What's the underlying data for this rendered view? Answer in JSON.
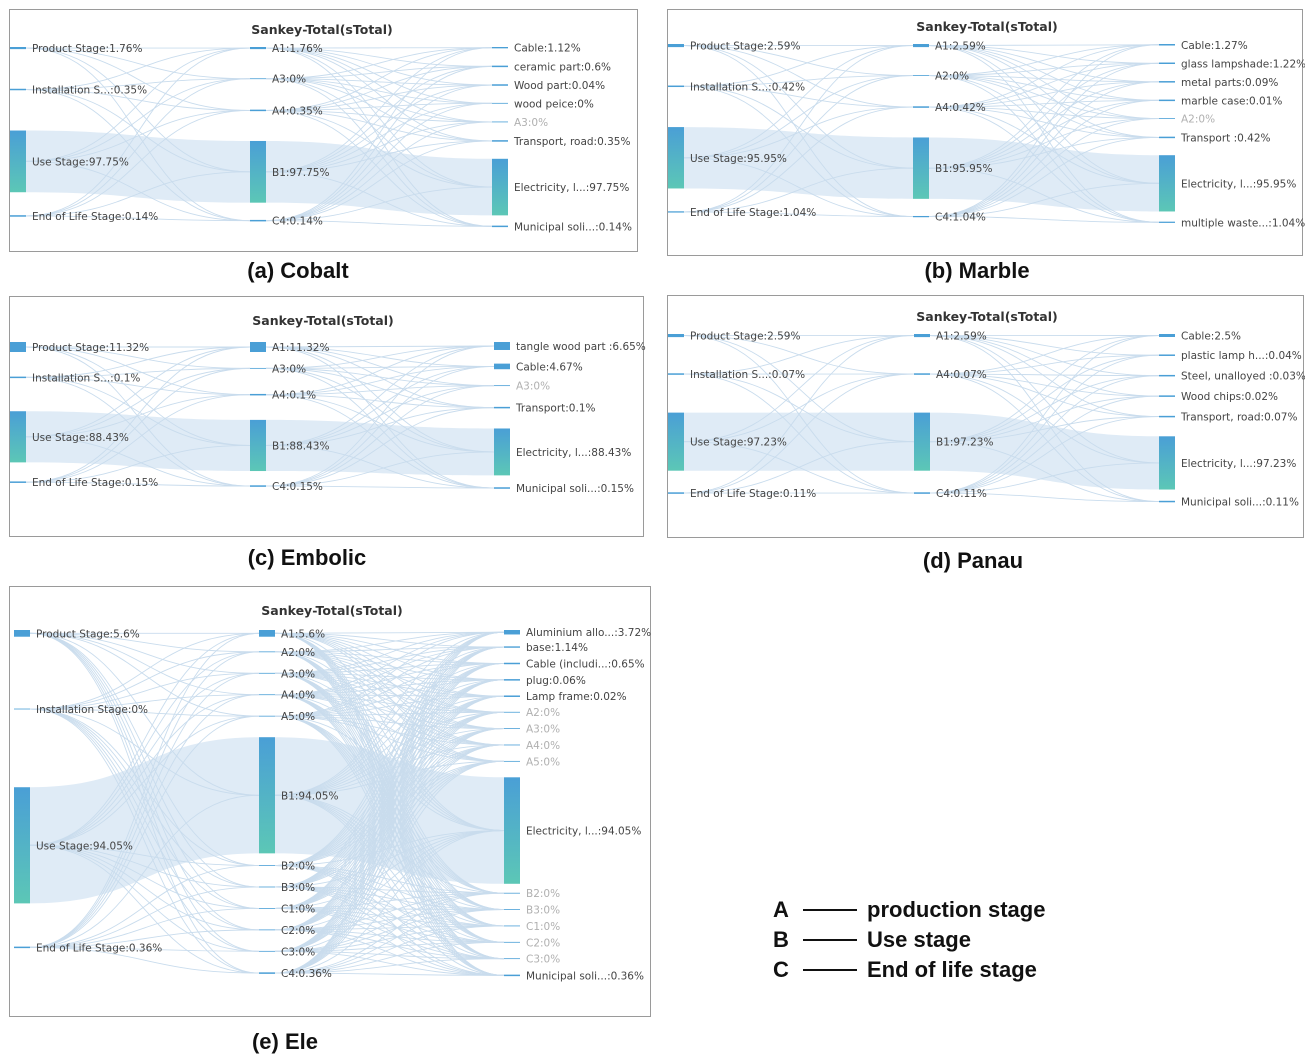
{
  "panels": [
    {
      "id": "a",
      "title": "Sankey-Total(sTotal)",
      "caption": "(a) Cobalt",
      "nodes": [
        {
          "label": "Product Stage:1.76%",
          "col": 0,
          "value": 1.76
        },
        {
          "label": "Installation S...:0.35%",
          "col": 0,
          "value": 0.35
        },
        {
          "label": "Use Stage:97.75%",
          "col": 0,
          "value": 97.75
        },
        {
          "label": "End of Life Stage:0.14%",
          "col": 0,
          "value": 0.14
        },
        {
          "label": "A1:1.76%",
          "col": 1,
          "value": 1.76
        },
        {
          "label": "A3:0%",
          "col": 1,
          "value": 0
        },
        {
          "label": "A4:0.35%",
          "col": 1,
          "value": 0.35
        },
        {
          "label": "B1:97.75%",
          "col": 1,
          "value": 97.75
        },
        {
          "label": "C4:0.14%",
          "col": 1,
          "value": 0.14
        },
        {
          "label": "Cable:1.12%",
          "col": 2,
          "value": 1.12
        },
        {
          "label": "ceramic part:0.6%",
          "col": 2,
          "value": 0.6
        },
        {
          "label": "Wood part:0.04%",
          "col": 2,
          "value": 0.04
        },
        {
          "label": "wood peice:0%",
          "col": 2,
          "value": 0
        },
        {
          "label": "A3:0%",
          "col": 2,
          "value": 0,
          "dim": true
        },
        {
          "label": "Transport, road:0.35%",
          "col": 2,
          "value": 0.35
        },
        {
          "label": "Electricity, l...:97.75%",
          "col": 2,
          "value": 97.75
        },
        {
          "label": "Municipal soli...:0.14%",
          "col": 2,
          "value": 0.14
        }
      ]
    },
    {
      "id": "b",
      "title": "Sankey-Total(sTotal)",
      "caption": "(b) Marble",
      "nodes": [
        {
          "label": "Product Stage:2.59%",
          "col": 0,
          "value": 2.59
        },
        {
          "label": "Installation S...:0.42%",
          "col": 0,
          "value": 0.42
        },
        {
          "label": "Use Stage:95.95%",
          "col": 0,
          "value": 95.95
        },
        {
          "label": "End of Life Stage:1.04%",
          "col": 0,
          "value": 1.04
        },
        {
          "label": "A1:2.59%",
          "col": 1,
          "value": 2.59
        },
        {
          "label": "A2:0%",
          "col": 1,
          "value": 0
        },
        {
          "label": "A4:0.42%",
          "col": 1,
          "value": 0.42
        },
        {
          "label": "B1:95.95%",
          "col": 1,
          "value": 95.95
        },
        {
          "label": "C4:1.04%",
          "col": 1,
          "value": 1.04
        },
        {
          "label": "Cable:1.27%",
          "col": 2,
          "value": 1.27
        },
        {
          "label": "glass lampshade:1.22%",
          "col": 2,
          "value": 1.22
        },
        {
          "label": "metal parts:0.09%",
          "col": 2,
          "value": 0.09
        },
        {
          "label": "marble case:0.01%",
          "col": 2,
          "value": 0.01
        },
        {
          "label": "A2:0%",
          "col": 2,
          "value": 0,
          "dim": true
        },
        {
          "label": "Transport :0.42%",
          "col": 2,
          "value": 0.42
        },
        {
          "label": "Electricity, l...:95.95%",
          "col": 2,
          "value": 95.95
        },
        {
          "label": "multiple waste...:1.04%",
          "col": 2,
          "value": 1.04
        }
      ]
    },
    {
      "id": "c",
      "title": "Sankey-Total(sTotal)",
      "caption": "(c) Embolic",
      "nodes": [
        {
          "label": "Product Stage:11.32%",
          "col": 0,
          "value": 11.32
        },
        {
          "label": "Installation S...:0.1%",
          "col": 0,
          "value": 0.1
        },
        {
          "label": "Use Stage:88.43%",
          "col": 0,
          "value": 88.43
        },
        {
          "label": "End of Life Stage:0.15%",
          "col": 0,
          "value": 0.15
        },
        {
          "label": "A1:11.32%",
          "col": 1,
          "value": 11.32
        },
        {
          "label": "A3:0%",
          "col": 1,
          "value": 0
        },
        {
          "label": "A4:0.1%",
          "col": 1,
          "value": 0.1
        },
        {
          "label": "B1:88.43%",
          "col": 1,
          "value": 88.43
        },
        {
          "label": "C4:0.15%",
          "col": 1,
          "value": 0.15
        },
        {
          "label": "tangle wood part :6.65%",
          "col": 2,
          "value": 6.65
        },
        {
          "label": "Cable:4.67%",
          "col": 2,
          "value": 4.67
        },
        {
          "label": "A3:0%",
          "col": 2,
          "value": 0,
          "dim": true
        },
        {
          "label": "Transport:0.1%",
          "col": 2,
          "value": 0.1
        },
        {
          "label": "Electricity, l...:88.43%",
          "col": 2,
          "value": 88.43
        },
        {
          "label": "Municipal soli...:0.15%",
          "col": 2,
          "value": 0.15
        }
      ]
    },
    {
      "id": "d",
      "title": "Sankey-Total(sTotal)",
      "caption": "(d) Panau",
      "nodes": [
        {
          "label": "Product Stage:2.59%",
          "col": 0,
          "value": 2.59
        },
        {
          "label": "Installation S...:0.07%",
          "col": 0,
          "value": 0.07
        },
        {
          "label": "Use Stage:97.23%",
          "col": 0,
          "value": 97.23
        },
        {
          "label": "End of Life Stage:0.11%",
          "col": 0,
          "value": 0.11
        },
        {
          "label": "A1:2.59%",
          "col": 1,
          "value": 2.59
        },
        {
          "label": "A4:0.07%",
          "col": 1,
          "value": 0.07
        },
        {
          "label": "B1:97.23%",
          "col": 1,
          "value": 97.23
        },
        {
          "label": "C4:0.11%",
          "col": 1,
          "value": 0.11
        },
        {
          "label": "Cable:2.5%",
          "col": 2,
          "value": 2.5
        },
        {
          "label": "plastic lamp h...:0.04%",
          "col": 2,
          "value": 0.04
        },
        {
          "label": "Steel, unalloyed :0.03%",
          "col": 2,
          "value": 0.03
        },
        {
          "label": "Wood chips:0.02%",
          "col": 2,
          "value": 0.02
        },
        {
          "label": "Transport, road:0.07%",
          "col": 2,
          "value": 0.07
        },
        {
          "label": "Electricity, l...:97.23%",
          "col": 2,
          "value": 97.23
        },
        {
          "label": "Municipal soli...:0.11%",
          "col": 2,
          "value": 0.11
        }
      ]
    },
    {
      "id": "e",
      "title": "Sankey-Total(sTotal)",
      "caption": "(e) Ele",
      "nodes": [
        {
          "label": "Product Stage:5.6%",
          "col": 0,
          "value": 5.6
        },
        {
          "label": "Installation Stage:0%",
          "col": 0,
          "value": 0
        },
        {
          "label": "Use Stage:94.05%",
          "col": 0,
          "value": 94.05
        },
        {
          "label": "End of Life Stage:0.36%",
          "col": 0,
          "value": 0.36
        },
        {
          "label": "A1:5.6%",
          "col": 1,
          "value": 5.6
        },
        {
          "label": "A2:0%",
          "col": 1,
          "value": 0
        },
        {
          "label": "A3:0%",
          "col": 1,
          "value": 0
        },
        {
          "label": "A4:0%",
          "col": 1,
          "value": 0
        },
        {
          "label": "A5:0%",
          "col": 1,
          "value": 0
        },
        {
          "label": "B1:94.05%",
          "col": 1,
          "value": 94.05
        },
        {
          "label": "B2:0%",
          "col": 1,
          "value": 0
        },
        {
          "label": "B3:0%",
          "col": 1,
          "value": 0
        },
        {
          "label": "C1:0%",
          "col": 1,
          "value": 0
        },
        {
          "label": "C2:0%",
          "col": 1,
          "value": 0
        },
        {
          "label": "C3:0%",
          "col": 1,
          "value": 0
        },
        {
          "label": "C4:0.36%",
          "col": 1,
          "value": 0.36
        },
        {
          "label": "Aluminium allo...:3.72%",
          "col": 2,
          "value": 3.72
        },
        {
          "label": "base:1.14%",
          "col": 2,
          "value": 1.14
        },
        {
          "label": "Cable (includi...:0.65%",
          "col": 2,
          "value": 0.65
        },
        {
          "label": "plug:0.06%",
          "col": 2,
          "value": 0.06
        },
        {
          "label": "Lamp frame:0.02%",
          "col": 2,
          "value": 0.02
        },
        {
          "label": "A2:0%",
          "col": 2,
          "value": 0,
          "dim": true
        },
        {
          "label": "A3:0%",
          "col": 2,
          "value": 0,
          "dim": true
        },
        {
          "label": "A4:0%",
          "col": 2,
          "value": 0,
          "dim": true
        },
        {
          "label": "A5:0%",
          "col": 2,
          "value": 0,
          "dim": true
        },
        {
          "label": "Electricity, l...:94.05%",
          "col": 2,
          "value": 94.05
        },
        {
          "label": "B2:0%",
          "col": 2,
          "value": 0,
          "dim": true
        },
        {
          "label": "B3:0%",
          "col": 2,
          "value": 0,
          "dim": true
        },
        {
          "label": "C1:0%",
          "col": 2,
          "value": 0,
          "dim": true
        },
        {
          "label": "C2:0%",
          "col": 2,
          "value": 0,
          "dim": true
        },
        {
          "label": "C3:0%",
          "col": 2,
          "value": 0,
          "dim": true
        },
        {
          "label": "Municipal soli...:0.36%",
          "col": 2,
          "value": 0.36
        }
      ]
    }
  ],
  "legend": [
    {
      "key": "A",
      "text": "production stage"
    },
    {
      "key": "B",
      "text": "Use stage"
    },
    {
      "key": "C",
      "text": "End of life stage"
    }
  ],
  "colors": {
    "bar_top": "#4a9fd6",
    "bar_bottom": "#5cc7b6",
    "link": "#d9e8f4",
    "thin_link": "#c9dced"
  }
}
